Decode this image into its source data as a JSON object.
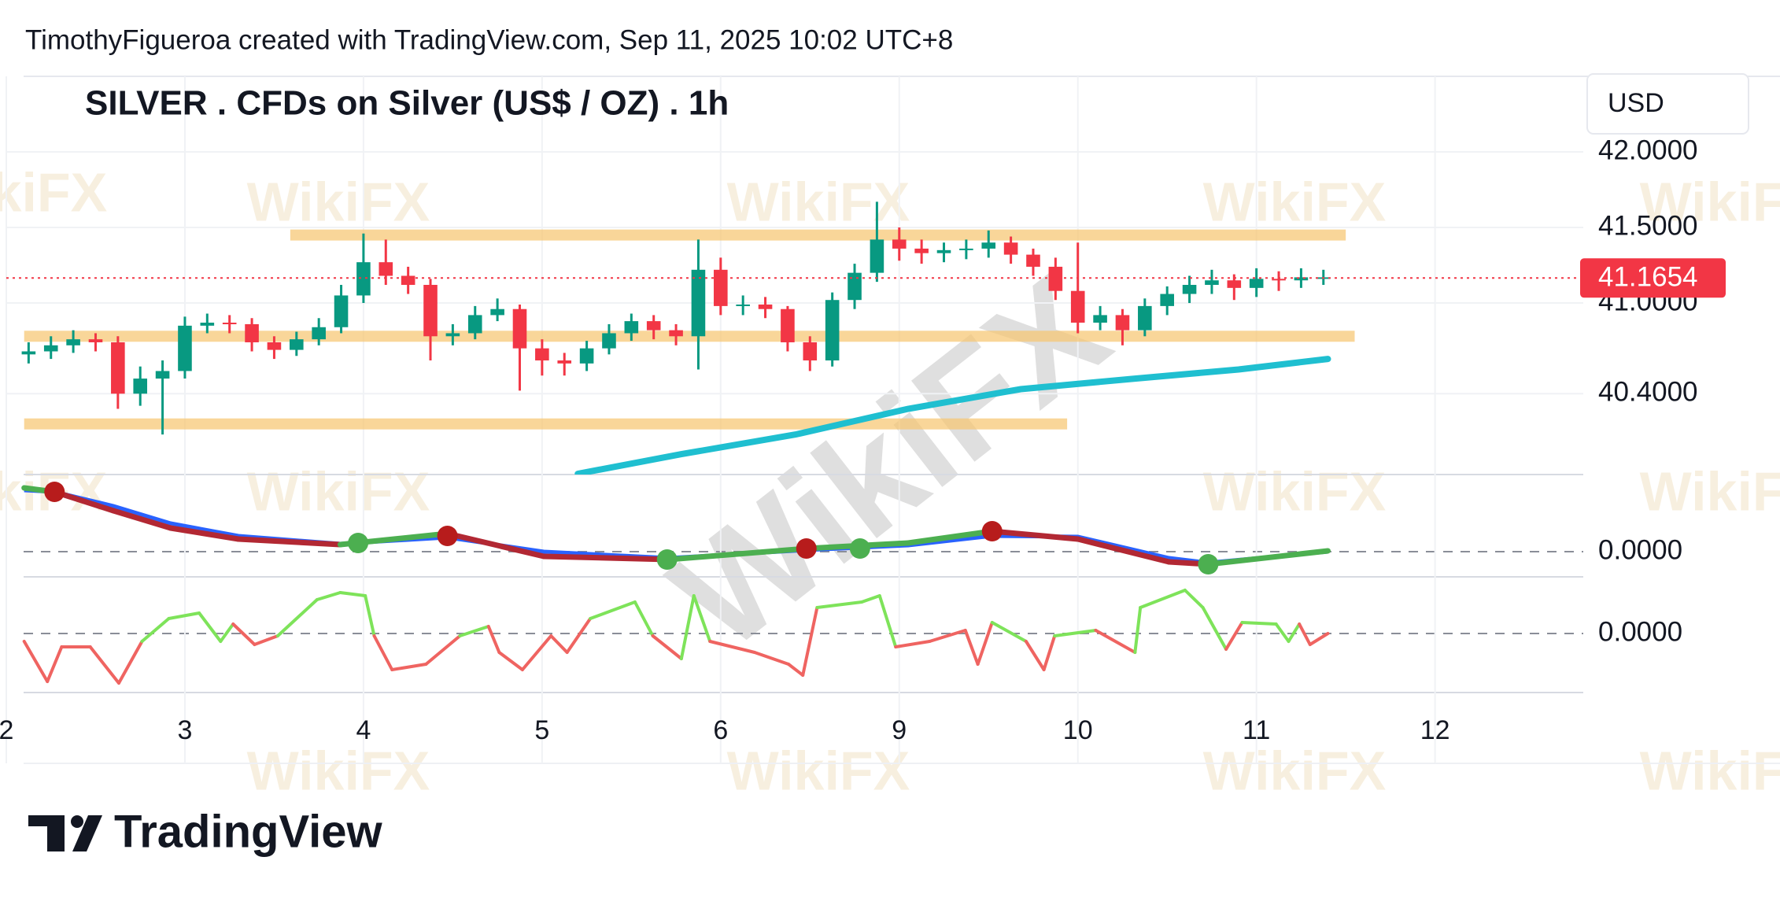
{
  "header": "TimothyFigueroa created with TradingView.com, Sep 11, 2025 10:02 UTC+8",
  "branding": "TradingView",
  "watermark": "WikiFX",
  "chart_data": [
    {
      "type": "candlestick",
      "title": "SILVER . CFDs on Silver (US$ / OZ) . 1h",
      "currency": "USD",
      "xlim": [
        0,
        8.83
      ],
      "ylim": [
        39.865,
        42.5
      ],
      "yticks": [
        {
          "value": 42,
          "label": "42.0000"
        },
        {
          "value": 41.5,
          "label": "41.5000"
        },
        {
          "value": 41,
          "label": "41.0000"
        },
        {
          "value": 40.4,
          "label": "40.4000"
        }
      ],
      "grid": true,
      "up_color": "#089981",
      "down_color": "#f23645",
      "x": [
        0.125,
        0.25,
        0.375,
        0.5,
        0.625,
        0.75,
        0.875,
        1.0,
        1.125,
        1.25,
        1.375,
        1.5,
        1.625,
        1.75,
        1.875,
        2.0,
        2.125,
        2.25,
        2.375,
        2.5,
        2.625,
        2.75,
        2.875,
        3.0,
        3.125,
        3.25,
        3.375,
        3.5,
        3.625,
        3.75,
        3.875,
        4.0,
        4.125,
        4.25,
        4.375,
        4.5,
        4.625,
        4.75,
        4.875,
        5.0,
        5.125,
        5.25,
        5.375,
        5.5,
        5.625,
        5.75,
        5.875,
        6.0,
        6.125,
        6.25,
        6.375,
        6.5,
        6.625,
        6.75,
        6.875,
        7.0,
        7.125,
        7.25,
        7.375
      ],
      "open": [
        40.66,
        40.68,
        40.72,
        40.76,
        40.74,
        40.4,
        40.5,
        40.55,
        40.85,
        40.87,
        40.86,
        40.74,
        40.69,
        40.76,
        40.84,
        41.05,
        41.27,
        41.18,
        41.12,
        40.78,
        40.8,
        40.92,
        40.96,
        40.7,
        40.62,
        40.6,
        40.7,
        40.8,
        40.88,
        40.82,
        40.78,
        41.22,
        40.98,
        40.99,
        40.96,
        40.74,
        40.62,
        41.02,
        41.2,
        41.42,
        41.36,
        41.33,
        41.35,
        41.36,
        41.4,
        41.32,
        41.24,
        41.08,
        40.87,
        40.92,
        40.82,
        40.98,
        41.06,
        41.12,
        41.15,
        41.1,
        41.16,
        41.15,
        41.17
      ],
      "high": [
        40.74,
        40.78,
        40.82,
        40.8,
        40.78,
        40.58,
        40.62,
        40.91,
        40.93,
        40.92,
        40.9,
        40.78,
        40.81,
        40.9,
        41.12,
        41.46,
        41.42,
        41.24,
        41.16,
        40.86,
        40.98,
        41.03,
        40.99,
        40.76,
        40.67,
        40.75,
        40.86,
        40.93,
        40.92,
        40.86,
        41.42,
        41.3,
        41.05,
        41.04,
        40.98,
        40.78,
        41.07,
        41.26,
        41.67,
        41.5,
        41.42,
        41.4,
        41.42,
        41.48,
        41.44,
        41.36,
        41.3,
        41.4,
        40.98,
        40.96,
        41.03,
        41.11,
        41.18,
        41.22,
        41.19,
        41.23,
        41.21,
        41.23,
        41.22
      ],
      "low": [
        40.6,
        40.63,
        40.67,
        40.68,
        40.3,
        40.32,
        40.13,
        40.5,
        40.8,
        40.8,
        40.68,
        40.63,
        40.65,
        40.72,
        40.8,
        41.0,
        41.12,
        41.06,
        40.62,
        40.72,
        40.76,
        40.88,
        40.42,
        40.52,
        40.52,
        40.55,
        40.66,
        40.75,
        40.76,
        40.72,
        40.56,
        40.92,
        40.92,
        40.9,
        40.68,
        40.55,
        40.58,
        40.96,
        41.14,
        41.28,
        41.26,
        41.27,
        41.29,
        41.3,
        41.26,
        41.18,
        41.02,
        40.8,
        40.82,
        40.72,
        40.78,
        40.92,
        41.0,
        41.06,
        41.02,
        41.04,
        41.08,
        41.1,
        41.12
      ],
      "close": [
        40.68,
        40.72,
        40.76,
        40.74,
        40.4,
        40.5,
        40.55,
        40.85,
        40.87,
        40.86,
        40.74,
        40.69,
        40.76,
        40.84,
        41.05,
        41.27,
        41.18,
        41.12,
        40.78,
        40.8,
        40.92,
        40.96,
        40.7,
        40.62,
        40.6,
        40.7,
        40.8,
        40.88,
        40.82,
        40.78,
        41.22,
        40.98,
        40.99,
        40.96,
        40.74,
        40.62,
        41.02,
        41.2,
        41.42,
        41.36,
        41.33,
        41.35,
        41.36,
        41.4,
        41.32,
        41.24,
        41.08,
        40.87,
        40.92,
        40.82,
        40.98,
        41.06,
        41.12,
        41.15,
        41.1,
        41.16,
        41.15,
        41.17,
        41.17
      ],
      "last_price": 41.1654,
      "last_price_color": "#f23645",
      "moving_average": {
        "color": "#1fbfd0",
        "x": [
          3.2,
          3.78,
          4.42,
          5.05,
          5.68,
          6.32,
          6.9,
          7.4
        ],
        "values": [
          39.87,
          40.0,
          40.13,
          40.3,
          40.43,
          40.5,
          40.56,
          40.63
        ]
      },
      "band_color": "#f7c56e",
      "bands": [
        {
          "value": 41.45,
          "from": 1.59,
          "to": 7.5
        },
        {
          "value": 40.78,
          "from": 0.1,
          "to": 7.55
        },
        {
          "value": 40.2,
          "from": 0.1,
          "to": 5.94
        }
      ]
    },
    {
      "type": "macd",
      "xlim": [
        0,
        8.83
      ],
      "ylim": [
        -0.32,
        0.98
      ],
      "yticks": [
        {
          "value": 0,
          "label": "0.0000"
        }
      ],
      "grid": "dashed",
      "x": [
        0.1,
        0.27,
        0.6,
        0.92,
        1.3,
        1.87,
        2.47,
        3.01,
        3.71,
        4.48,
        5.05,
        5.52,
        6.0,
        6.51,
        6.73,
        7.4
      ],
      "macd": [
        0.81,
        0.76,
        0.52,
        0.3,
        0.16,
        0.09,
        0.23,
        -0.06,
        -0.1,
        0.04,
        0.11,
        0.26,
        0.16,
        -0.13,
        -0.16,
        0.01
      ],
      "signal": [
        0.78,
        0.76,
        0.58,
        0.36,
        0.2,
        0.1,
        0.18,
        0.0,
        -0.08,
        0.02,
        0.08,
        0.2,
        0.19,
        -0.08,
        -0.14,
        0.0
      ],
      "macd_up_color": "#4caf50",
      "macd_down_color": "#b22833",
      "signal_color": "#2962ff",
      "crosses": {
        "x": [
          0.27,
          1.97,
          2.47,
          3.7,
          4.48,
          4.78,
          5.52,
          6.73
        ],
        "values": [
          0.76,
          0.11,
          0.2,
          -0.1,
          0.04,
          0.04,
          0.26,
          -0.16
        ],
        "colors": [
          "#b71c1c",
          "#4caf50",
          "#b71c1c",
          "#4caf50",
          "#b71c1c",
          "#4caf50",
          "#b71c1c",
          "#4caf50"
        ]
      }
    },
    {
      "type": "oscillator",
      "xlim": [
        0,
        8.83
      ],
      "ylim": [
        -0.75,
        0.72
      ],
      "yticks": [
        {
          "value": 0,
          "label": "0.0000"
        }
      ],
      "grid": "dashed",
      "xticks": [
        {
          "value": 0,
          "label": "2"
        },
        {
          "value": 1,
          "label": "3"
        },
        {
          "value": 2,
          "label": "4"
        },
        {
          "value": 3,
          "label": "5"
        },
        {
          "value": 4,
          "label": "6"
        },
        {
          "value": 5,
          "label": "9"
        },
        {
          "value": 6,
          "label": "10"
        },
        {
          "value": 7,
          "label": "11"
        },
        {
          "value": 8,
          "label": "12"
        }
      ],
      "up_color": "#7ee35a",
      "down_color": "#ef6461",
      "x": [
        0.1,
        0.23,
        0.31,
        0.47,
        0.63,
        0.76,
        0.91,
        1.08,
        1.2,
        1.27,
        1.39,
        1.52,
        1.74,
        1.87,
        2.01,
        2.06,
        2.16,
        2.35,
        2.54,
        2.7,
        2.76,
        2.89,
        3.05,
        3.14,
        3.27,
        3.52,
        3.62,
        3.78,
        3.85,
        3.94,
        4.19,
        4.38,
        4.46,
        4.54,
        4.79,
        4.89,
        4.98,
        5.17,
        5.37,
        5.44,
        5.52,
        5.71,
        5.81,
        5.87,
        6.1,
        6.32,
        6.35,
        6.6,
        6.7,
        6.83,
        6.92,
        7.11,
        7.18,
        7.24,
        7.3,
        7.4
      ],
      "values": [
        -0.1,
        -0.61,
        -0.17,
        -0.17,
        -0.63,
        -0.1,
        0.19,
        0.26,
        -0.1,
        0.12,
        -0.14,
        -0.03,
        0.43,
        0.52,
        0.48,
        -0.03,
        -0.46,
        -0.39,
        -0.03,
        0.09,
        -0.24,
        -0.46,
        -0.03,
        -0.24,
        0.19,
        0.4,
        -0.03,
        -0.32,
        0.48,
        -0.1,
        -0.24,
        -0.39,
        -0.53,
        0.33,
        0.4,
        0.48,
        -0.17,
        -0.1,
        0.04,
        -0.39,
        0.14,
        -0.1,
        -0.46,
        -0.03,
        0.04,
        -0.24,
        0.33,
        0.55,
        0.33,
        -0.2,
        0.14,
        0.12,
        -0.1,
        0.12,
        -0.14,
        0.0
      ]
    }
  ]
}
